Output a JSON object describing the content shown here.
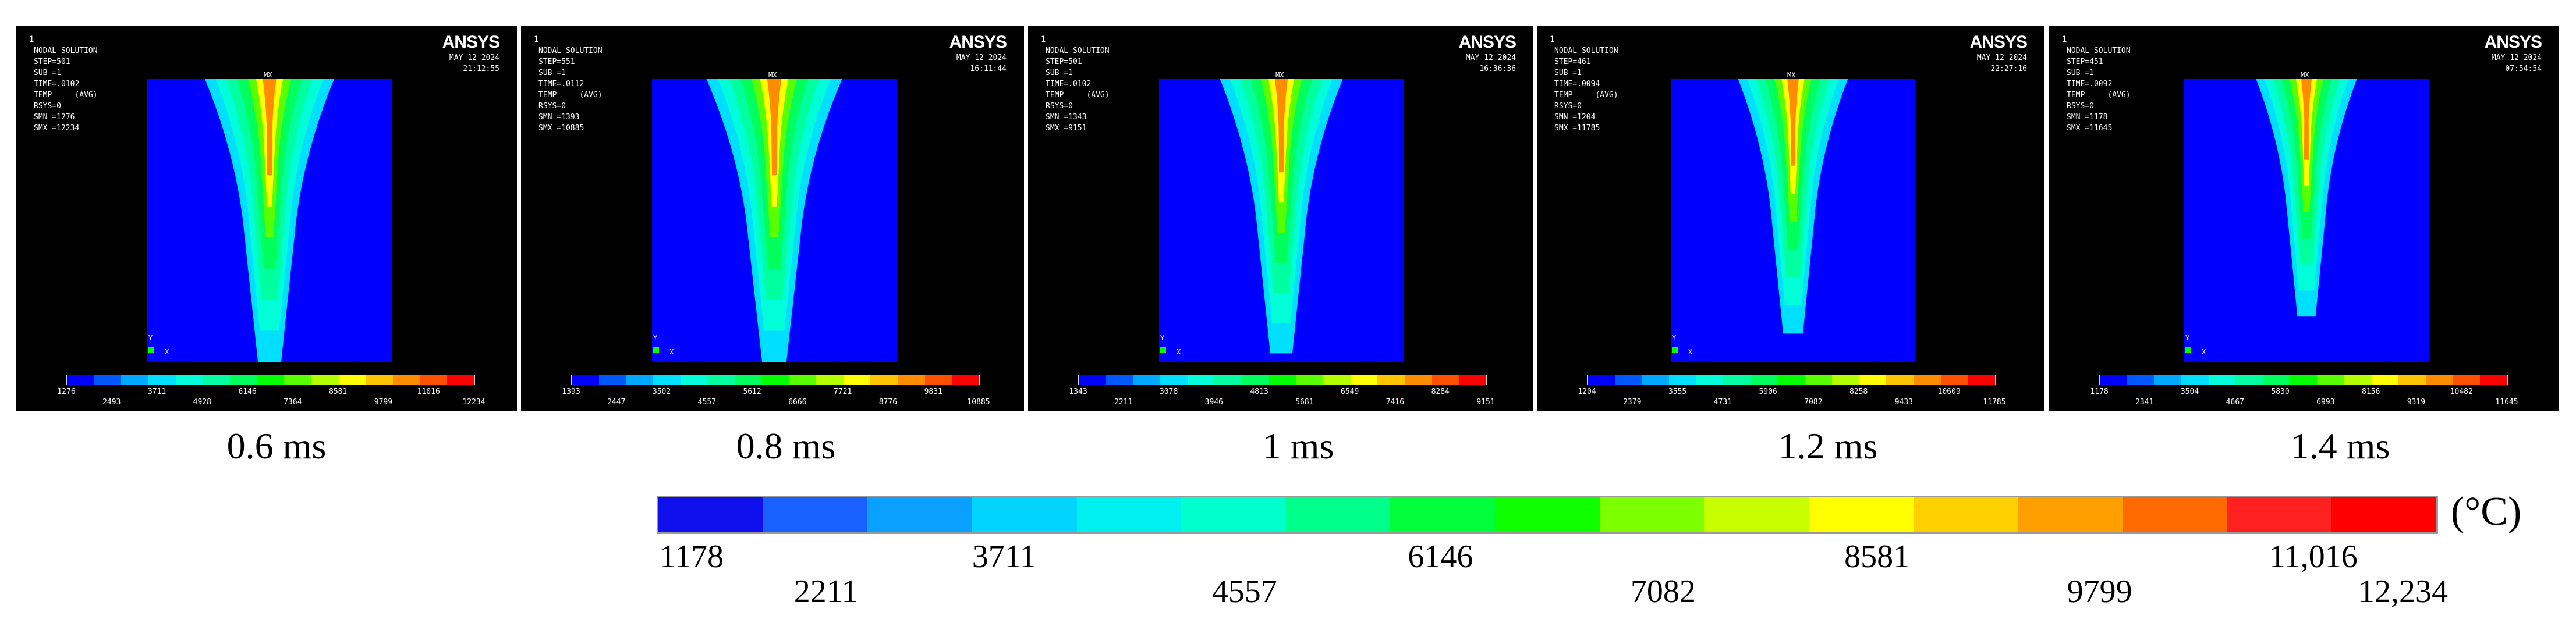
{
  "colors": [
    "#0000ff",
    "#0059ff",
    "#00a8ff",
    "#00dfff",
    "#00ffd8",
    "#00ff9e",
    "#00ff5c",
    "#00ff00",
    "#59ff00",
    "#b3ff00",
    "#ffff00",
    "#ffc400",
    "#ff8c00",
    "#ff5000",
    "#ff0000"
  ],
  "panels": [
    {
      "index": "1",
      "title": "NODAL SOLUTION",
      "info": [
        "STEP=501",
        "SUB =1",
        "TIME=.0102",
        "TEMP     (AVG)",
        "RSYS=0",
        "SMN =1276",
        "SMX =12234"
      ],
      "logo": "ANSYS",
      "date": "MAY 12 2024",
      "clock": "21:12:55",
      "mx": "MX",
      "axis_y": "Y",
      "axis_x": "X",
      "ticks_top": [
        "1276",
        "3711",
        "6146",
        "8581",
        "11016"
      ],
      "ticks_bottom": [
        "2493",
        "4928",
        "7364",
        "9799",
        "12234"
      ],
      "time": "0.6 ms",
      "spread": 1.0,
      "tail": 0.0
    },
    {
      "index": "1",
      "title": "NODAL SOLUTION",
      "info": [
        "STEP=551",
        "SUB =1",
        "TIME=.0112",
        "TEMP     (AVG)",
        "RSYS=0",
        "SMN =1393",
        "SMX =10885"
      ],
      "logo": "ANSYS",
      "date": "MAY 12 2024",
      "clock": "16:11:44",
      "mx": "MX",
      "axis_y": "Y",
      "axis_x": "X",
      "ticks_top": [
        "1393",
        "3502",
        "5612",
        "7721",
        "9831"
      ],
      "ticks_bottom": [
        "2447",
        "4557",
        "6666",
        "8776",
        "10885"
      ],
      "time": "0.8 ms",
      "spread": 1.05,
      "tail": 0.0
    },
    {
      "index": "1",
      "title": "NODAL SOLUTION",
      "info": [
        "STEP=501",
        "SUB =1",
        "TIME=.0102",
        "TEMP     (AVG)",
        "RSYS=0",
        "SMN =1343",
        "SMX =9151"
      ],
      "logo": "ANSYS",
      "date": "MAY 12 2024",
      "clock": "16:36:36",
      "mx": "MX",
      "axis_y": "Y",
      "axis_x": "X",
      "ticks_top": [
        "1343",
        "3078",
        "4813",
        "6549",
        "8284"
      ],
      "ticks_bottom": [
        "2211",
        "3946",
        "5681",
        "7416",
        "9151"
      ],
      "time": "1 ms",
      "spread": 0.95,
      "tail": 0.03
    },
    {
      "index": "1",
      "title": "NODAL SOLUTION",
      "info": [
        "STEP=461",
        "SUB =1",
        "TIME=.0094",
        "TEMP     (AVG)",
        "RSYS=0",
        "SMN =1204",
        "SMX =11785"
      ],
      "logo": "ANSYS",
      "date": "MAY 12 2024",
      "clock": "22:27:16",
      "mx": "MX",
      "axis_y": "Y",
      "axis_x": "X",
      "ticks_top": [
        "1204",
        "3555",
        "5906",
        "8258",
        "10609"
      ],
      "ticks_bottom": [
        "2379",
        "4731",
        "7082",
        "9433",
        "11785"
      ],
      "time": "1.2 ms",
      "spread": 0.85,
      "tail": 0.1
    },
    {
      "index": "1",
      "title": "NODAL SOLUTION",
      "info": [
        "STEP=451",
        "SUB =1",
        "TIME=.0092",
        "TEMP     (AVG)",
        "RSYS=0",
        "SMN =1178",
        "SMX =11645"
      ],
      "logo": "ANSYS",
      "date": "MAY 12 2024",
      "clock": "07:54:54",
      "mx": "MX",
      "axis_y": "Y",
      "axis_x": "X",
      "ticks_top": [
        "1178",
        "3504",
        "5830",
        "8156",
        "10482"
      ],
      "ticks_bottom": [
        "2341",
        "4667",
        "6993",
        "9319",
        "11645"
      ],
      "time": "1.4 ms",
      "spread": 0.78,
      "tail": 0.16
    }
  ],
  "legend": {
    "unit": "(°C)",
    "ticks_top": [
      "1178",
      "3711",
      "6146",
      "8581",
      "11,016"
    ],
    "ticks_bottom": [
      "2211",
      "4557",
      "7082",
      "9799",
      "12,234"
    ]
  }
}
